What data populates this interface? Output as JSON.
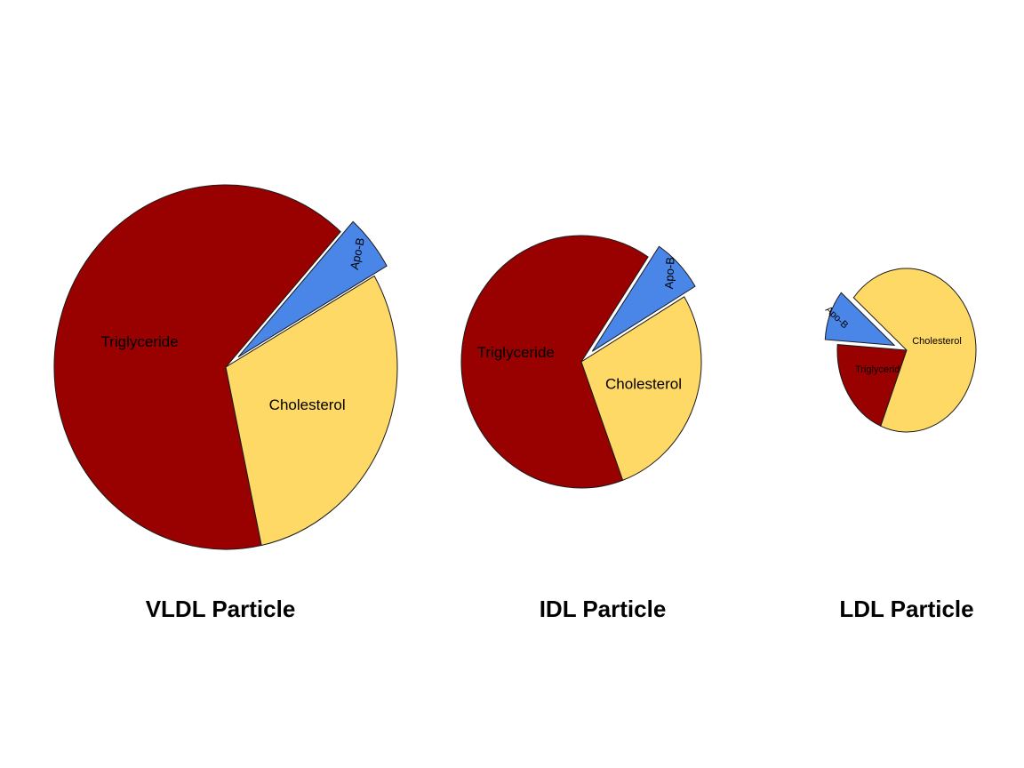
{
  "chart_data": [
    {
      "type": "pie",
      "title": "VLDL Particle",
      "slices": [
        {
          "label": "Apo-B",
          "value": 5,
          "color": "#4a86e8"
        },
        {
          "label": "Cholesterol",
          "value": 30,
          "color": "#ffd966"
        },
        {
          "label": "Triglyceride",
          "value": 65,
          "color": "#990000"
        }
      ]
    },
    {
      "type": "pie",
      "title": "IDL Particle",
      "slices": [
        {
          "label": "Apo-B",
          "value": 7,
          "color": "#4a86e8"
        },
        {
          "label": "Cholesterol",
          "value": 28,
          "color": "#ffd966"
        },
        {
          "label": "Triglyceride",
          "value": 65,
          "color": "#990000"
        }
      ]
    },
    {
      "type": "pie",
      "title": "LDL Particle",
      "slices": [
        {
          "label": "Apo-B",
          "value": 10,
          "color": "#4a86e8"
        },
        {
          "label": "Cholesterol",
          "value": 70,
          "color": "#ffd966"
        },
        {
          "label": "Triglyceride",
          "value": 20,
          "color": "#990000"
        }
      ]
    }
  ]
}
